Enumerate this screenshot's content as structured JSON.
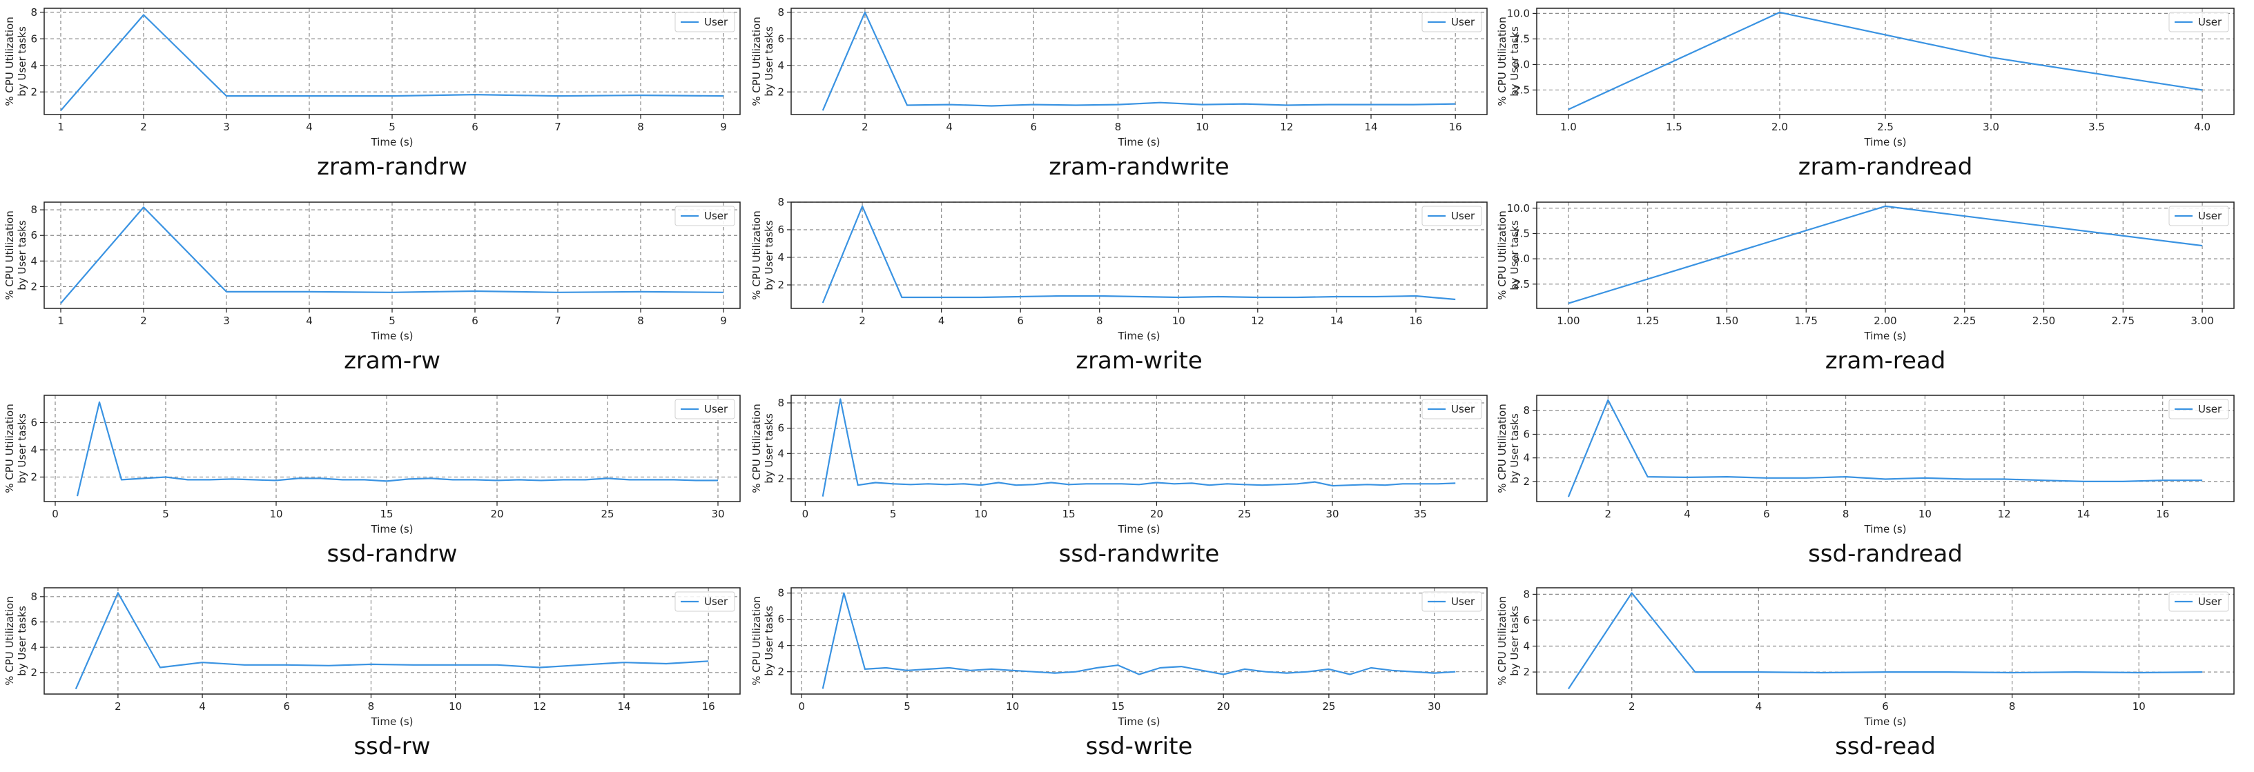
{
  "chart_data": [
    {
      "type": "line",
      "caption": "zram-randrw",
      "xlabel": "Time (s)",
      "ylabel": "% CPU Utilization\nby User tasks",
      "xlim": [
        0.8,
        9.2
      ],
      "ylim": [
        0.3,
        8.3
      ],
      "xticks": [
        "1",
        "2",
        "3",
        "4",
        "5",
        "6",
        "7",
        "8",
        "9"
      ],
      "xtick_values": [
        1,
        2,
        3,
        4,
        5,
        6,
        7,
        8,
        9
      ],
      "yticks": [
        "2",
        "4",
        "6",
        "8"
      ],
      "ytick_values": [
        2,
        4,
        6,
        8
      ],
      "grid": true,
      "legend": "top-right",
      "legend_position": "upper right",
      "series": [
        {
          "name": "User",
          "color": "#3a93e2",
          "x": [
            1,
            2,
            3,
            4,
            5,
            6,
            7,
            8,
            9
          ],
          "y": [
            0.6,
            7.8,
            1.7,
            1.7,
            1.7,
            1.8,
            1.7,
            1.75,
            1.7
          ]
        }
      ]
    },
    {
      "type": "line",
      "caption": "zram-randwrite",
      "xlabel": "Time (s)",
      "ylabel": "% CPU Utilization\nby User tasks",
      "xlim": [
        0.25,
        16.75
      ],
      "ylim": [
        0.3,
        8.3
      ],
      "xticks": [
        "2",
        "4",
        "6",
        "8",
        "10",
        "12",
        "14",
        "16"
      ],
      "xtick_values": [
        2,
        4,
        6,
        8,
        10,
        12,
        14,
        16
      ],
      "yticks": [
        "2",
        "4",
        "6",
        "8"
      ],
      "ytick_values": [
        2,
        4,
        6,
        8
      ],
      "grid": true,
      "legend": "top-right",
      "legend_position": "upper right",
      "series": [
        {
          "name": "User",
          "color": "#3a93e2",
          "x": [
            1,
            2,
            3,
            4,
            5,
            6,
            7,
            8,
            9,
            10,
            11,
            12,
            13,
            14,
            15,
            16
          ],
          "y": [
            0.6,
            8.0,
            1.0,
            1.05,
            0.95,
            1.05,
            1.0,
            1.05,
            1.2,
            1.05,
            1.1,
            1.0,
            1.05,
            1.05,
            1.05,
            1.1
          ]
        }
      ]
    },
    {
      "type": "line",
      "caption": "zram-randread",
      "xlabel": "Time (s)",
      "ylabel": "% CPU Utilization\nby User tasks",
      "xlim": [
        0.85,
        4.15
      ],
      "ylim": [
        0.1,
        10.5
      ],
      "xticks": [
        "1.0",
        "1.5",
        "2.0",
        "2.5",
        "3.0",
        "3.5",
        "4.0"
      ],
      "xtick_values": [
        1,
        1.5,
        2,
        2.5,
        3,
        3.5,
        4
      ],
      "yticks": [
        "2.5",
        "5.0",
        "7.5",
        "10.0"
      ],
      "ytick_values": [
        2.5,
        5,
        7.5,
        10
      ],
      "grid": true,
      "legend": "top-right",
      "legend_position": "upper right",
      "series": [
        {
          "name": "User",
          "color": "#3a93e2",
          "x": [
            1,
            2,
            3,
            4
          ],
          "y": [
            0.6,
            10.1,
            5.7,
            2.5
          ]
        }
      ]
    },
    {
      "type": "line",
      "caption": "zram-rw",
      "xlabel": "Time (s)",
      "ylabel": "% CPU Utilization\nby User tasks",
      "xlim": [
        0.8,
        9.2
      ],
      "ylim": [
        0.3,
        8.6
      ],
      "xticks": [
        "1",
        "2",
        "3",
        "4",
        "5",
        "6",
        "7",
        "8",
        "9"
      ],
      "xtick_values": [
        1,
        2,
        3,
        4,
        5,
        6,
        7,
        8,
        9
      ],
      "yticks": [
        "2",
        "4",
        "6",
        "8"
      ],
      "ytick_values": [
        2,
        4,
        6,
        8
      ],
      "grid": true,
      "legend": "top-right",
      "legend_position": "upper right",
      "series": [
        {
          "name": "User",
          "color": "#3a93e2",
          "x": [
            1,
            2,
            3,
            4,
            5,
            6,
            7,
            8,
            9
          ],
          "y": [
            0.7,
            8.2,
            1.6,
            1.6,
            1.55,
            1.65,
            1.55,
            1.6,
            1.55
          ]
        }
      ]
    },
    {
      "type": "line",
      "caption": "zram-write",
      "xlabel": "Time (s)",
      "ylabel": "% CPU Utilization\nby User tasks",
      "xlim": [
        0.2,
        17.8
      ],
      "ylim": [
        0.3,
        8.0
      ],
      "xticks": [
        "2",
        "4",
        "6",
        "8",
        "10",
        "12",
        "14",
        "16"
      ],
      "xtick_values": [
        2,
        4,
        6,
        8,
        10,
        12,
        14,
        16
      ],
      "yticks": [
        "2",
        "4",
        "6",
        "8"
      ],
      "ytick_values": [
        2,
        4,
        6,
        8
      ],
      "grid": true,
      "legend": "top-right",
      "legend_position": "upper right",
      "series": [
        {
          "name": "User",
          "color": "#3a93e2",
          "x": [
            1,
            2,
            3,
            4,
            5,
            6,
            7,
            8,
            9,
            10,
            11,
            12,
            13,
            14,
            15,
            16,
            17
          ],
          "y": [
            0.7,
            7.7,
            1.1,
            1.1,
            1.1,
            1.15,
            1.2,
            1.2,
            1.15,
            1.1,
            1.15,
            1.1,
            1.1,
            1.15,
            1.15,
            1.2,
            0.95
          ]
        }
      ]
    },
    {
      "type": "line",
      "caption": "zram-read",
      "xlabel": "Time (s)",
      "ylabel": "% CPU Utilization\nby User tasks",
      "xlim": [
        0.9,
        3.1
      ],
      "ylim": [
        0.1,
        10.6
      ],
      "xticks": [
        "1.00",
        "1.25",
        "1.50",
        "1.75",
        "2.00",
        "2.25",
        "2.50",
        "2.75",
        "3.00"
      ],
      "xtick_values": [
        1,
        1.25,
        1.5,
        1.75,
        2,
        2.25,
        2.5,
        2.75,
        3
      ],
      "yticks": [
        "2.5",
        "5.0",
        "7.5",
        "10.0"
      ],
      "ytick_values": [
        2.5,
        5,
        7.5,
        10
      ],
      "grid": true,
      "legend": "top-right",
      "legend_position": "upper right",
      "series": [
        {
          "name": "User",
          "color": "#3a93e2",
          "x": [
            1,
            2,
            3
          ],
          "y": [
            0.6,
            10.2,
            6.3
          ]
        }
      ]
    },
    {
      "type": "line",
      "caption": "ssd-randrw",
      "xlabel": "Time (s)",
      "ylabel": "% CPU Utilization\nby User tasks",
      "xlim": [
        -0.5,
        31.0
      ],
      "ylim": [
        0.2,
        8.0
      ],
      "xticks": [
        "0",
        "5",
        "10",
        "15",
        "20",
        "25",
        "30"
      ],
      "xtick_values": [
        0,
        5,
        10,
        15,
        20,
        25,
        30
      ],
      "yticks": [
        "2",
        "4",
        "6"
      ],
      "ytick_values": [
        2,
        4,
        6
      ],
      "grid": true,
      "legend": "top-right",
      "legend_position": "upper right",
      "series": [
        {
          "name": "User",
          "color": "#3a93e2",
          "x": [
            1,
            2,
            3,
            4,
            5,
            6,
            7,
            8,
            9,
            10,
            11,
            12,
            13,
            14,
            15,
            16,
            17,
            18,
            19,
            20,
            21,
            22,
            23,
            24,
            25,
            26,
            27,
            28,
            29,
            30
          ],
          "y": [
            0.6,
            7.5,
            1.8,
            1.9,
            2.0,
            1.8,
            1.8,
            1.85,
            1.8,
            1.75,
            1.9,
            1.9,
            1.8,
            1.8,
            1.7,
            1.85,
            1.9,
            1.8,
            1.8,
            1.75,
            1.8,
            1.75,
            1.8,
            1.8,
            1.9,
            1.8,
            1.8,
            1.8,
            1.75,
            1.75
          ]
        }
      ]
    },
    {
      "type": "line",
      "caption": "ssd-randwrite",
      "xlabel": "Time (s)",
      "ylabel": "% CPU Utilization\nby User tasks",
      "xlim": [
        -0.8,
        38.8
      ],
      "ylim": [
        0.2,
        8.6
      ],
      "xticks": [
        "0",
        "5",
        "10",
        "15",
        "20",
        "25",
        "30",
        "35"
      ],
      "xtick_values": [
        0,
        5,
        10,
        15,
        20,
        25,
        30,
        35
      ],
      "yticks": [
        "2",
        "4",
        "6",
        "8"
      ],
      "ytick_values": [
        2,
        4,
        6,
        8
      ],
      "grid": true,
      "legend": "top-right",
      "legend_position": "upper right",
      "series": [
        {
          "name": "User",
          "color": "#3a93e2",
          "x": [
            1,
            2,
            3,
            4,
            5,
            6,
            7,
            8,
            9,
            10,
            11,
            12,
            13,
            14,
            15,
            16,
            17,
            18,
            19,
            20,
            21,
            22,
            23,
            24,
            25,
            26,
            27,
            28,
            29,
            30,
            31,
            32,
            33,
            34,
            35,
            36,
            37
          ],
          "y": [
            0.6,
            8.3,
            1.5,
            1.7,
            1.6,
            1.55,
            1.6,
            1.55,
            1.6,
            1.5,
            1.7,
            1.5,
            1.55,
            1.7,
            1.55,
            1.6,
            1.6,
            1.6,
            1.55,
            1.7,
            1.6,
            1.65,
            1.5,
            1.6,
            1.55,
            1.5,
            1.55,
            1.6,
            1.75,
            1.45,
            1.5,
            1.55,
            1.5,
            1.6,
            1.6,
            1.6,
            1.65
          ]
        }
      ]
    },
    {
      "type": "line",
      "caption": "ssd-randread",
      "xlabel": "Time (s)",
      "ylabel": "% CPU Utilization\nby User tasks",
      "xlim": [
        0.2,
        17.8
      ],
      "ylim": [
        0.3,
        9.3
      ],
      "xticks": [
        "2",
        "4",
        "6",
        "8",
        "10",
        "12",
        "14",
        "16"
      ],
      "xtick_values": [
        2,
        4,
        6,
        8,
        10,
        12,
        14,
        16
      ],
      "yticks": [
        "2",
        "4",
        "6",
        "8"
      ],
      "ytick_values": [
        2,
        4,
        6,
        8
      ],
      "grid": true,
      "legend": "top-right",
      "legend_position": "upper right",
      "series": [
        {
          "name": "User",
          "color": "#3a93e2",
          "x": [
            1,
            2,
            3,
            4,
            5,
            6,
            7,
            8,
            9,
            10,
            11,
            12,
            13,
            14,
            15,
            16,
            17
          ],
          "y": [
            0.7,
            8.9,
            2.4,
            2.35,
            2.4,
            2.3,
            2.3,
            2.4,
            2.2,
            2.3,
            2.2,
            2.2,
            2.1,
            2.0,
            2.0,
            2.1,
            2.1
          ]
        }
      ]
    },
    {
      "type": "line",
      "caption": "ssd-rw",
      "xlabel": "Time (s)",
      "ylabel": "% CPU Utilization\nby User tasks",
      "xlim": [
        0.25,
        16.75
      ],
      "ylim": [
        0.3,
        8.7
      ],
      "xticks": [
        "2",
        "4",
        "6",
        "8",
        "10",
        "12",
        "14",
        "16"
      ],
      "xtick_values": [
        2,
        4,
        6,
        8,
        10,
        12,
        14,
        16
      ],
      "yticks": [
        "2",
        "4",
        "6",
        "8"
      ],
      "ytick_values": [
        2,
        4,
        6,
        8
      ],
      "grid": true,
      "legend": "top-right",
      "legend_position": "upper right",
      "series": [
        {
          "name": "User",
          "color": "#3a93e2",
          "x": [
            1,
            2,
            3,
            4,
            5,
            6,
            7,
            8,
            9,
            10,
            11,
            12,
            13,
            14,
            15,
            16
          ],
          "y": [
            0.7,
            8.3,
            2.4,
            2.8,
            2.6,
            2.6,
            2.55,
            2.65,
            2.6,
            2.6,
            2.6,
            2.4,
            2.6,
            2.8,
            2.7,
            2.9
          ]
        }
      ]
    },
    {
      "type": "line",
      "caption": "ssd-write",
      "xlabel": "Time (s)",
      "ylabel": "% CPU Utilization\nby User tasks",
      "xlim": [
        -0.5,
        32.5
      ],
      "ylim": [
        0.3,
        8.4
      ],
      "xticks": [
        "0",
        "5",
        "10",
        "15",
        "20",
        "25",
        "30"
      ],
      "xtick_values": [
        0,
        5,
        10,
        15,
        20,
        25,
        30
      ],
      "yticks": [
        "2",
        "4",
        "6",
        "8"
      ],
      "ytick_values": [
        2,
        4,
        6,
        8
      ],
      "grid": true,
      "legend": "top-right",
      "legend_position": "upper right",
      "series": [
        {
          "name": "User",
          "color": "#3a93e2",
          "x": [
            1,
            2,
            3,
            4,
            5,
            6,
            7,
            8,
            9,
            10,
            11,
            12,
            13,
            14,
            15,
            16,
            17,
            18,
            19,
            20,
            21,
            22,
            23,
            24,
            25,
            26,
            27,
            28,
            29,
            30,
            31
          ],
          "y": [
            0.7,
            8.0,
            2.2,
            2.3,
            2.1,
            2.2,
            2.3,
            2.1,
            2.2,
            2.1,
            2.0,
            1.9,
            2.0,
            2.3,
            2.5,
            1.8,
            2.3,
            2.4,
            2.1,
            1.8,
            2.2,
            2.0,
            1.9,
            2.0,
            2.2,
            1.8,
            2.3,
            2.1,
            2.0,
            1.9,
            2.0
          ]
        }
      ]
    },
    {
      "type": "line",
      "caption": "ssd-read",
      "xlabel": "Time (s)",
      "ylabel": "% CPU Utilization\nby User tasks",
      "xlim": [
        0.5,
        11.5
      ],
      "ylim": [
        0.3,
        8.5
      ],
      "xticks": [
        "2",
        "4",
        "6",
        "8",
        "10"
      ],
      "xtick_values": [
        2,
        4,
        6,
        8,
        10
      ],
      "yticks": [
        "2",
        "4",
        "6",
        "8"
      ],
      "ytick_values": [
        2,
        4,
        6,
        8
      ],
      "grid": true,
      "legend": "top-right",
      "legend_position": "upper right",
      "series": [
        {
          "name": "User",
          "color": "#3a93e2",
          "x": [
            1,
            2,
            3,
            4,
            5,
            6,
            7,
            8,
            9,
            10,
            11
          ],
          "y": [
            0.7,
            8.1,
            2.0,
            2.0,
            1.95,
            2.0,
            2.0,
            1.95,
            2.0,
            1.95,
            2.0
          ]
        }
      ]
    }
  ]
}
